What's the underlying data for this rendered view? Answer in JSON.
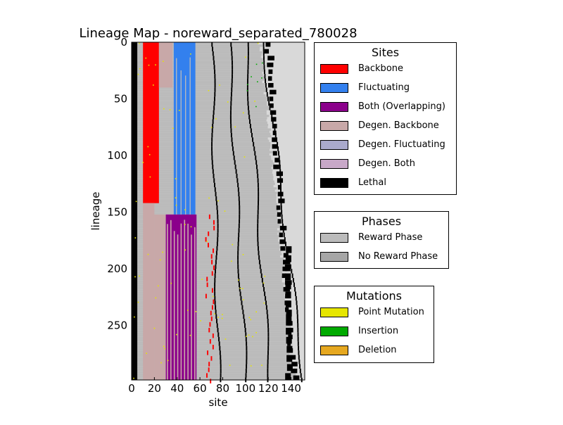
{
  "chart_data": {
    "type": "heatmap",
    "title": "Lineage Map - noreward_separated_780028",
    "xlabel": "site",
    "ylabel": "lineage",
    "xlim": [
      0,
      152
    ],
    "ylim": [
      298,
      0
    ],
    "x_ticks": [
      "0",
      "20",
      "40",
      "60",
      "80",
      "100",
      "120",
      "140"
    ],
    "x_tick_values": [
      0,
      20,
      40,
      60,
      80,
      100,
      120,
      140
    ],
    "y_ticks": [
      "0",
      "50",
      "100",
      "150",
      "200",
      "250"
    ],
    "y_tick_values": [
      0,
      50,
      100,
      150,
      200,
      250
    ],
    "grid": false,
    "phase_boundary_lineage": 152,
    "regions": [
      {
        "category": "Reward Phase",
        "x": [
          0,
          152
        ],
        "y": [
          0,
          298
        ]
      },
      {
        "category": "Lethal",
        "x": [
          0,
          5
        ],
        "y": [
          0,
          298
        ]
      },
      {
        "category": "Backbone",
        "x": [
          10,
          24
        ],
        "y": [
          0,
          142
        ]
      },
      {
        "category": "Degen. Backbone",
        "x": [
          24,
          36
        ],
        "y": [
          0,
          40
        ]
      },
      {
        "category": "Degen. Backbone",
        "x": [
          10,
          20
        ],
        "y": [
          142,
          298
        ]
      },
      {
        "category": "Fluctuating",
        "x": [
          37,
          56
        ],
        "y": [
          0,
          152
        ]
      },
      {
        "category": "Both (Overlapping)",
        "x": [
          30,
          57
        ],
        "y": [
          152,
          298
        ]
      },
      {
        "category": "Degen. Backbone",
        "x": [
          20,
          30
        ],
        "y": [
          152,
          298
        ]
      }
    ]
  },
  "legends": {
    "sites": {
      "title": "Sites",
      "items": [
        {
          "label": "Backbone",
          "color": "#ff0000"
        },
        {
          "label": "Fluctuating",
          "color": "#3380ee"
        },
        {
          "label": "Both (Overlapping)",
          "color": "#8b008b"
        },
        {
          "label": "Degen. Backbone",
          "color": "#c8a8a8"
        },
        {
          "label": "Degen. Fluctuating",
          "color": "#aaaacc"
        },
        {
          "label": "Degen. Both",
          "color": "#c8a8c8"
        },
        {
          "label": "Lethal",
          "color": "#000000"
        }
      ]
    },
    "phases": {
      "title": "Phases",
      "items": [
        {
          "label": "Reward Phase",
          "color": "#bbbbbb"
        },
        {
          "label": "No Reward Phase",
          "color": "#a6a6a6"
        }
      ]
    },
    "mutations": {
      "title": "Mutations",
      "items": [
        {
          "label": "Point Mutation",
          "color": "#e6e600"
        },
        {
          "label": "Insertion",
          "color": "#00aa00"
        },
        {
          "label": "Deletion",
          "color": "#e6a820"
        }
      ]
    }
  },
  "colors": {
    "background_region": "#d9d9d9",
    "reward_phase": "#bbbbbb",
    "lethal": "#000000",
    "backbone": "#ff0000",
    "fluctuating": "#3380ee",
    "both": "#8b008b",
    "degen_backbone": "#c8a8a8",
    "point_mutation": "#e6e600",
    "insertion": "#00aa00"
  }
}
